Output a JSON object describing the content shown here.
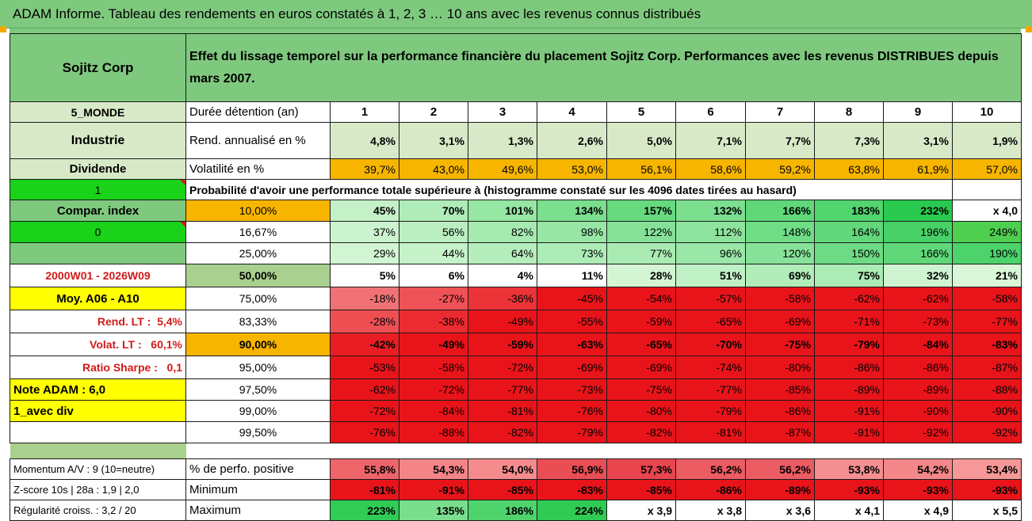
{
  "title": "ADAM Informe. Tableau des rendements en euros constatés à 1, 2, 3 … 10 ans avec les revenus connus distribués",
  "header": {
    "company": "Sojitz Corp",
    "description": "Effet du lissage temporel sur la performance financière du placement Sojitz Corp. Performances avec les revenus DISTRIBUES depuis mars 2007."
  },
  "left": {
    "region": "5_MONDE",
    "sector": "Industrie",
    "dividend": "Dividende",
    "one": "1",
    "compar": "Compar. index",
    "zero": "0",
    "period": "2000W01 - 2026W09",
    "moy": "Moy. A06 - A10",
    "rend_lt_label": "Rend. LT :",
    "rend_lt_value": "5,4%",
    "volat_lt_label": "Volat. LT :",
    "volat_lt_value": "60,1%",
    "sharpe_label": "Ratio Sharpe :",
    "sharpe_value": "0,1",
    "note": "Note ADAM : 6,0",
    "div": "1_avec div",
    "momentum": "Momentum A/V : 9 (10=neutre)",
    "zscore": "Z-score 10s | 28a : 1,9 | 2,0",
    "regularite": "Régularité croiss. : 3,2 / 20"
  },
  "rows": {
    "duree_label": "Durée détention (an)",
    "years": [
      "1",
      "2",
      "3",
      "4",
      "5",
      "6",
      "7",
      "8",
      "9",
      "10"
    ],
    "rend_label": "Rend. annualisé en %",
    "rend": [
      "4,8%",
      "3,1%",
      "1,3%",
      "2,6%",
      "5,0%",
      "7,1%",
      "7,7%",
      "7,3%",
      "3,1%",
      "1,9%"
    ],
    "vol_label": "Volatilité en %",
    "vol": [
      "39,7%",
      "43,0%",
      "49,6%",
      "53,0%",
      "56,1%",
      "58,6%",
      "59,2%",
      "63,8%",
      "61,9%",
      "57,0%"
    ],
    "proba_label": "Probabilité d'avoir une performance totale supérieure à (histogramme constaté sur les 4096 dates tirées au hasard)",
    "quantiles": [
      {
        "p": "10,00%",
        "v": [
          "45%",
          "70%",
          "101%",
          "134%",
          "157%",
          "132%",
          "166%",
          "183%",
          "232%",
          "x 4,0"
        ]
      },
      {
        "p": "16,67%",
        "v": [
          "37%",
          "56%",
          "82%",
          "98%",
          "122%",
          "112%",
          "148%",
          "164%",
          "196%",
          "249%"
        ]
      },
      {
        "p": "25,00%",
        "v": [
          "29%",
          "44%",
          "64%",
          "73%",
          "77%",
          "96%",
          "120%",
          "150%",
          "166%",
          "190%"
        ]
      },
      {
        "p": "50,00%",
        "v": [
          "5%",
          "6%",
          "4%",
          "11%",
          "28%",
          "51%",
          "69%",
          "75%",
          "32%",
          "21%"
        ]
      },
      {
        "p": "75,00%",
        "v": [
          "-18%",
          "-27%",
          "-36%",
          "-45%",
          "-54%",
          "-57%",
          "-58%",
          "-62%",
          "-62%",
          "-58%"
        ]
      },
      {
        "p": "83,33%",
        "v": [
          "-28%",
          "-38%",
          "-49%",
          "-55%",
          "-59%",
          "-65%",
          "-69%",
          "-71%",
          "-73%",
          "-77%"
        ]
      },
      {
        "p": "90,00%",
        "v": [
          "-42%",
          "-49%",
          "-59%",
          "-63%",
          "-65%",
          "-70%",
          "-75%",
          "-79%",
          "-84%",
          "-83%"
        ]
      },
      {
        "p": "95,00%",
        "v": [
          "-53%",
          "-58%",
          "-72%",
          "-69%",
          "-69%",
          "-74%",
          "-80%",
          "-86%",
          "-86%",
          "-87%"
        ]
      },
      {
        "p": "97,50%",
        "v": [
          "-62%",
          "-72%",
          "-77%",
          "-73%",
          "-75%",
          "-77%",
          "-85%",
          "-89%",
          "-89%",
          "-88%"
        ]
      },
      {
        "p": "99,00%",
        "v": [
          "-72%",
          "-84%",
          "-81%",
          "-76%",
          "-80%",
          "-79%",
          "-86%",
          "-91%",
          "-90%",
          "-90%"
        ]
      },
      {
        "p": "99,50%",
        "v": [
          "-76%",
          "-88%",
          "-82%",
          "-79%",
          "-82%",
          "-81%",
          "-87%",
          "-91%",
          "-92%",
          "-92%"
        ]
      }
    ],
    "pos_label": "% de perfo. positive",
    "pos": [
      "55,8%",
      "54,3%",
      "54,0%",
      "56,9%",
      "57,3%",
      "56,2%",
      "56,2%",
      "53,8%",
      "54,2%",
      "53,4%"
    ],
    "min_label": "Minimum",
    "min": [
      "-81%",
      "-91%",
      "-85%",
      "-83%",
      "-85%",
      "-86%",
      "-89%",
      "-93%",
      "-93%",
      "-93%"
    ],
    "max_label": "Maximum",
    "max": [
      "223%",
      "135%",
      "186%",
      "224%",
      "x 3,9",
      "x 3,8",
      "x 3,6",
      "x 4,1",
      "x 4,9",
      "x 5,5"
    ]
  },
  "colors": {
    "header_green": "#7fc97f",
    "light_green": "#d8e9c8",
    "orange": "#f7b500",
    "bright_green": "#19d219",
    "red": "#e8141a",
    "yellow": "#ffff00",
    "label_red": "#d11a1a"
  }
}
